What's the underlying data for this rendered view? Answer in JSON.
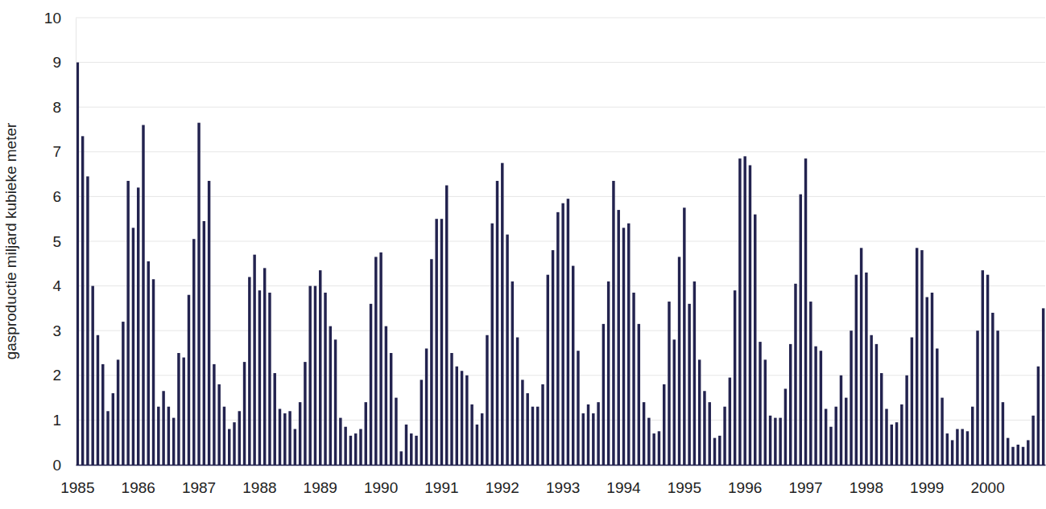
{
  "chart_data": {
    "type": "bar",
    "y_label": "gasproductie miljard kubieke meter",
    "categories": [
      "1985",
      null,
      null,
      null,
      null,
      null,
      null,
      null,
      null,
      null,
      null,
      null,
      "1986",
      null,
      null,
      null,
      null,
      null,
      null,
      null,
      null,
      null,
      null,
      null,
      "1987",
      null,
      null,
      null,
      null,
      null,
      null,
      null,
      null,
      null,
      null,
      null,
      "1988",
      null,
      null,
      null,
      null,
      null,
      null,
      null,
      null,
      null,
      null,
      null,
      "1989",
      null,
      null,
      null,
      null,
      null,
      null,
      null,
      null,
      null,
      null,
      null,
      "1990",
      null,
      null,
      null,
      null,
      null,
      null,
      null,
      null,
      null,
      null,
      null,
      "1991",
      null,
      null,
      null,
      null,
      null,
      null,
      null,
      null,
      null,
      null,
      null,
      "1992",
      null,
      null,
      null,
      null,
      null,
      null,
      null,
      null,
      null,
      null,
      null,
      "1993",
      null,
      null,
      null,
      null,
      null,
      null,
      null,
      null,
      null,
      null,
      null,
      "1994",
      null,
      null,
      null,
      null,
      null,
      null,
      null,
      null,
      null,
      null,
      null,
      "1995",
      null,
      null,
      null,
      null,
      null,
      null,
      null,
      null,
      null,
      null,
      null,
      "1996",
      null,
      null,
      null,
      null,
      null,
      null,
      null,
      null,
      null,
      null,
      null,
      "1997",
      null,
      null,
      null,
      null,
      null,
      null,
      null,
      null,
      null,
      null,
      null,
      "1998",
      null,
      null,
      null,
      null,
      null,
      null,
      null,
      null,
      null,
      null,
      null,
      "1999",
      null,
      null,
      null,
      null,
      null,
      null,
      null,
      null,
      null,
      null,
      null,
      "2000",
      null,
      null,
      null,
      null,
      null,
      null,
      null,
      null,
      null,
      null,
      null
    ],
    "values": [
      9.0,
      7.35,
      6.45,
      4.0,
      2.9,
      2.25,
      1.2,
      1.6,
      2.35,
      3.2,
      6.35,
      5.3,
      6.2,
      7.6,
      4.55,
      4.15,
      1.3,
      1.65,
      1.3,
      1.05,
      2.5,
      2.4,
      3.8,
      5.05,
      7.65,
      5.45,
      6.35,
      2.25,
      1.8,
      1.3,
      0.8,
      0.95,
      1.2,
      2.3,
      4.2,
      4.7,
      3.9,
      4.4,
      3.85,
      2.05,
      1.25,
      1.15,
      1.2,
      0.8,
      1.4,
      2.3,
      4.0,
      4.0,
      4.35,
      3.85,
      3.1,
      2.8,
      1.05,
      0.85,
      0.65,
      0.7,
      0.8,
      1.4,
      3.6,
      4.65,
      4.75,
      3.1,
      2.5,
      1.5,
      0.3,
      0.9,
      0.7,
      0.65,
      1.9,
      2.6,
      4.6,
      5.5,
      5.5,
      6.25,
      2.5,
      2.2,
      2.1,
      2.0,
      1.35,
      0.9,
      1.15,
      2.9,
      5.4,
      6.35,
      6.75,
      5.15,
      4.1,
      2.85,
      1.9,
      1.6,
      1.3,
      1.3,
      1.8,
      4.25,
      4.8,
      5.65,
      5.85,
      5.95,
      4.45,
      2.55,
      1.15,
      1.35,
      1.15,
      1.4,
      3.15,
      4.1,
      6.35,
      5.7,
      5.3,
      5.4,
      3.85,
      3.15,
      1.4,
      1.05,
      0.7,
      0.75,
      1.8,
      3.65,
      2.8,
      4.65,
      5.75,
      3.6,
      4.1,
      2.35,
      1.65,
      1.4,
      0.6,
      0.65,
      1.3,
      1.95,
      3.9,
      6.85,
      6.9,
      6.7,
      5.6,
      2.75,
      2.35,
      1.1,
      1.05,
      1.05,
      1.7,
      2.7,
      4.05,
      6.05,
      6.85,
      3.65,
      2.65,
      2.55,
      1.25,
      0.85,
      1.3,
      2.0,
      1.5,
      3.0,
      4.25,
      4.85,
      4.3,
      2.9,
      2.7,
      2.05,
      1.25,
      0.9,
      0.95,
      1.35,
      2.0,
      2.85,
      4.85,
      4.8,
      3.75,
      3.85,
      2.6,
      1.5,
      0.7,
      0.55,
      0.8,
      0.8,
      0.75,
      1.3,
      3.0,
      4.35,
      4.25,
      3.4,
      3.0,
      1.4,
      0.6,
      0.4,
      0.45,
      0.4,
      0.55,
      1.1,
      2.2,
      3.5
    ],
    "color": "#23234f",
    "ylim": [
      0,
      10
    ],
    "yticks": [
      0,
      1,
      2,
      3,
      4,
      5,
      6,
      7,
      8,
      9,
      10
    ],
    "grid": true
  }
}
